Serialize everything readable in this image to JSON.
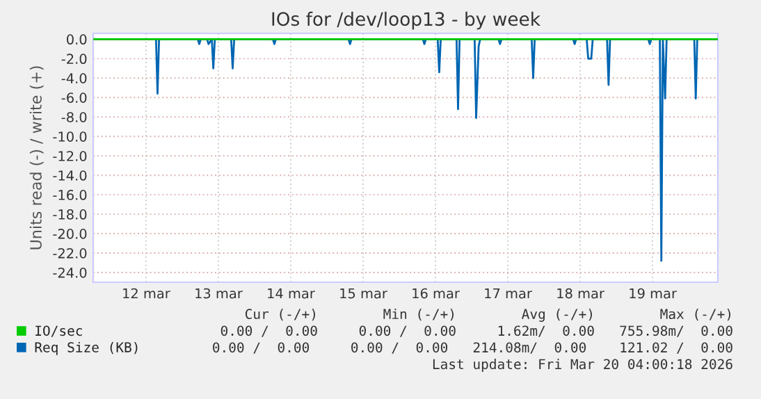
{
  "chart_data": {
    "type": "line",
    "title": "IOs for /dev/loop13 - by week",
    "ylabel": "Units read (-) / write (+)",
    "xlim": [
      "2026-03-11T18:30",
      "2026-03-20T09:40"
    ],
    "xticks": [
      {
        "value": "2026-03-12T12:00",
        "label": "12 mar"
      },
      {
        "value": "2026-03-13T12:00",
        "label": "13 mar"
      },
      {
        "value": "2026-03-14T12:00",
        "label": "14 mar"
      },
      {
        "value": "2026-03-15T12:00",
        "label": "15 mar"
      },
      {
        "value": "2026-03-16T12:00",
        "label": "16 mar"
      },
      {
        "value": "2026-03-17T12:00",
        "label": "17 mar"
      },
      {
        "value": "2026-03-18T12:00",
        "label": "18 mar"
      },
      {
        "value": "2026-03-19T12:00",
        "label": "19 mar"
      }
    ],
    "ylim": [
      -25,
      0.6
    ],
    "yticks": [
      {
        "value": 0,
        "label": "0.0"
      },
      {
        "value": -2,
        "label": "-2.0"
      },
      {
        "value": -4,
        "label": "-4.0"
      },
      {
        "value": -6,
        "label": "-6.0"
      },
      {
        "value": -8,
        "label": "-8.0"
      },
      {
        "value": -10,
        "label": "-10.0"
      },
      {
        "value": -12,
        "label": "-12.0"
      },
      {
        "value": -14,
        "label": "-14.0"
      },
      {
        "value": -16,
        "label": "-16.0"
      },
      {
        "value": -18,
        "label": "-18.0"
      },
      {
        "value": -20,
        "label": "-20.0"
      },
      {
        "value": -22,
        "label": "-22.0"
      },
      {
        "value": -24,
        "label": "-24.0"
      }
    ],
    "grid": true,
    "legend": "bottom",
    "series": [
      {
        "name": "IO/sec",
        "color": "#00cc00",
        "x": [
          "2026-03-11T18:30",
          "2026-03-20T09:40"
        ],
        "values": [
          0,
          0
        ]
      },
      {
        "name": "Req Size (KB)",
        "color": "#0066b3",
        "x": [
          "2026-03-12T15:20",
          "2026-03-12T15:50",
          "2026-03-12T16:20",
          "2026-03-13T05:10",
          "2026-03-13T05:40",
          "2026-03-13T06:10",
          "2026-03-13T08:15",
          "2026-03-13T08:45",
          "2026-03-13T09:50",
          "2026-03-13T10:20",
          "2026-03-13T10:50",
          "2026-03-13T16:15",
          "2026-03-13T16:45",
          "2026-03-13T17:15",
          "2026-03-14T06:05",
          "2026-03-14T06:35",
          "2026-03-14T07:05",
          "2026-03-15T07:10",
          "2026-03-15T07:40",
          "2026-03-15T08:10",
          "2026-03-16T07:50",
          "2026-03-16T08:20",
          "2026-03-16T08:50",
          "2026-03-16T12:45",
          "2026-03-16T13:15",
          "2026-03-16T13:45",
          "2026-03-16T19:00",
          "2026-03-16T19:30",
          "2026-03-16T20:00",
          "2026-03-17T01:00",
          "2026-03-17T01:30",
          "2026-03-17T02:20",
          "2026-03-17T02:50",
          "2026-03-17T08:55",
          "2026-03-17T09:25",
          "2026-03-17T09:55",
          "2026-03-17T19:55",
          "2026-03-17T20:25",
          "2026-03-17T20:55",
          "2026-03-18T09:40",
          "2026-03-18T10:10",
          "2026-03-18T10:40",
          "2026-03-18T14:10",
          "2026-03-18T14:40",
          "2026-03-18T15:40",
          "2026-03-18T16:10",
          "2026-03-18T20:55",
          "2026-03-18T21:25",
          "2026-03-18T21:55",
          "2026-03-19T10:35",
          "2026-03-19T11:05",
          "2026-03-19T11:35",
          "2026-03-19T14:25",
          "2026-03-19T14:55",
          "2026-03-19T15:25",
          "2026-03-19T16:10",
          "2026-03-19T16:40",
          "2026-03-20T01:50",
          "2026-03-20T02:20",
          "2026-03-20T02:50"
        ],
        "values": [
          0,
          -5.6,
          0,
          0,
          -0.5,
          0,
          0,
          -0.5,
          0,
          -3.0,
          0,
          0,
          -3.0,
          0,
          0,
          -0.5,
          0,
          0,
          -0.5,
          0,
          0,
          -0.5,
          0,
          0,
          -3.4,
          0,
          0,
          -7.2,
          0,
          0,
          -8.1,
          -0.7,
          0,
          0,
          -0.5,
          0,
          0,
          -4.0,
          0,
          0,
          -0.5,
          0,
          0,
          -2.0,
          -2.0,
          0,
          0,
          -4.7,
          0,
          0,
          -0.5,
          0,
          0,
          -22.8,
          0,
          -6.1,
          0,
          0,
          -6.1,
          0
        ]
      }
    ],
    "annotations": [
      "Cur (-/+)        Min (-/+)        Avg (-/+)        Max (-/+)",
      "0.00 /  0.00     0.00 /  0.00     1.62m/  0.00   755.98m/  0.00",
      "0.00 /  0.00     0.00 /  0.00   214.08m/  0.00    121.02 /  0.00",
      "Last update: Fri Mar 20 04:00:18 2026"
    ]
  }
}
